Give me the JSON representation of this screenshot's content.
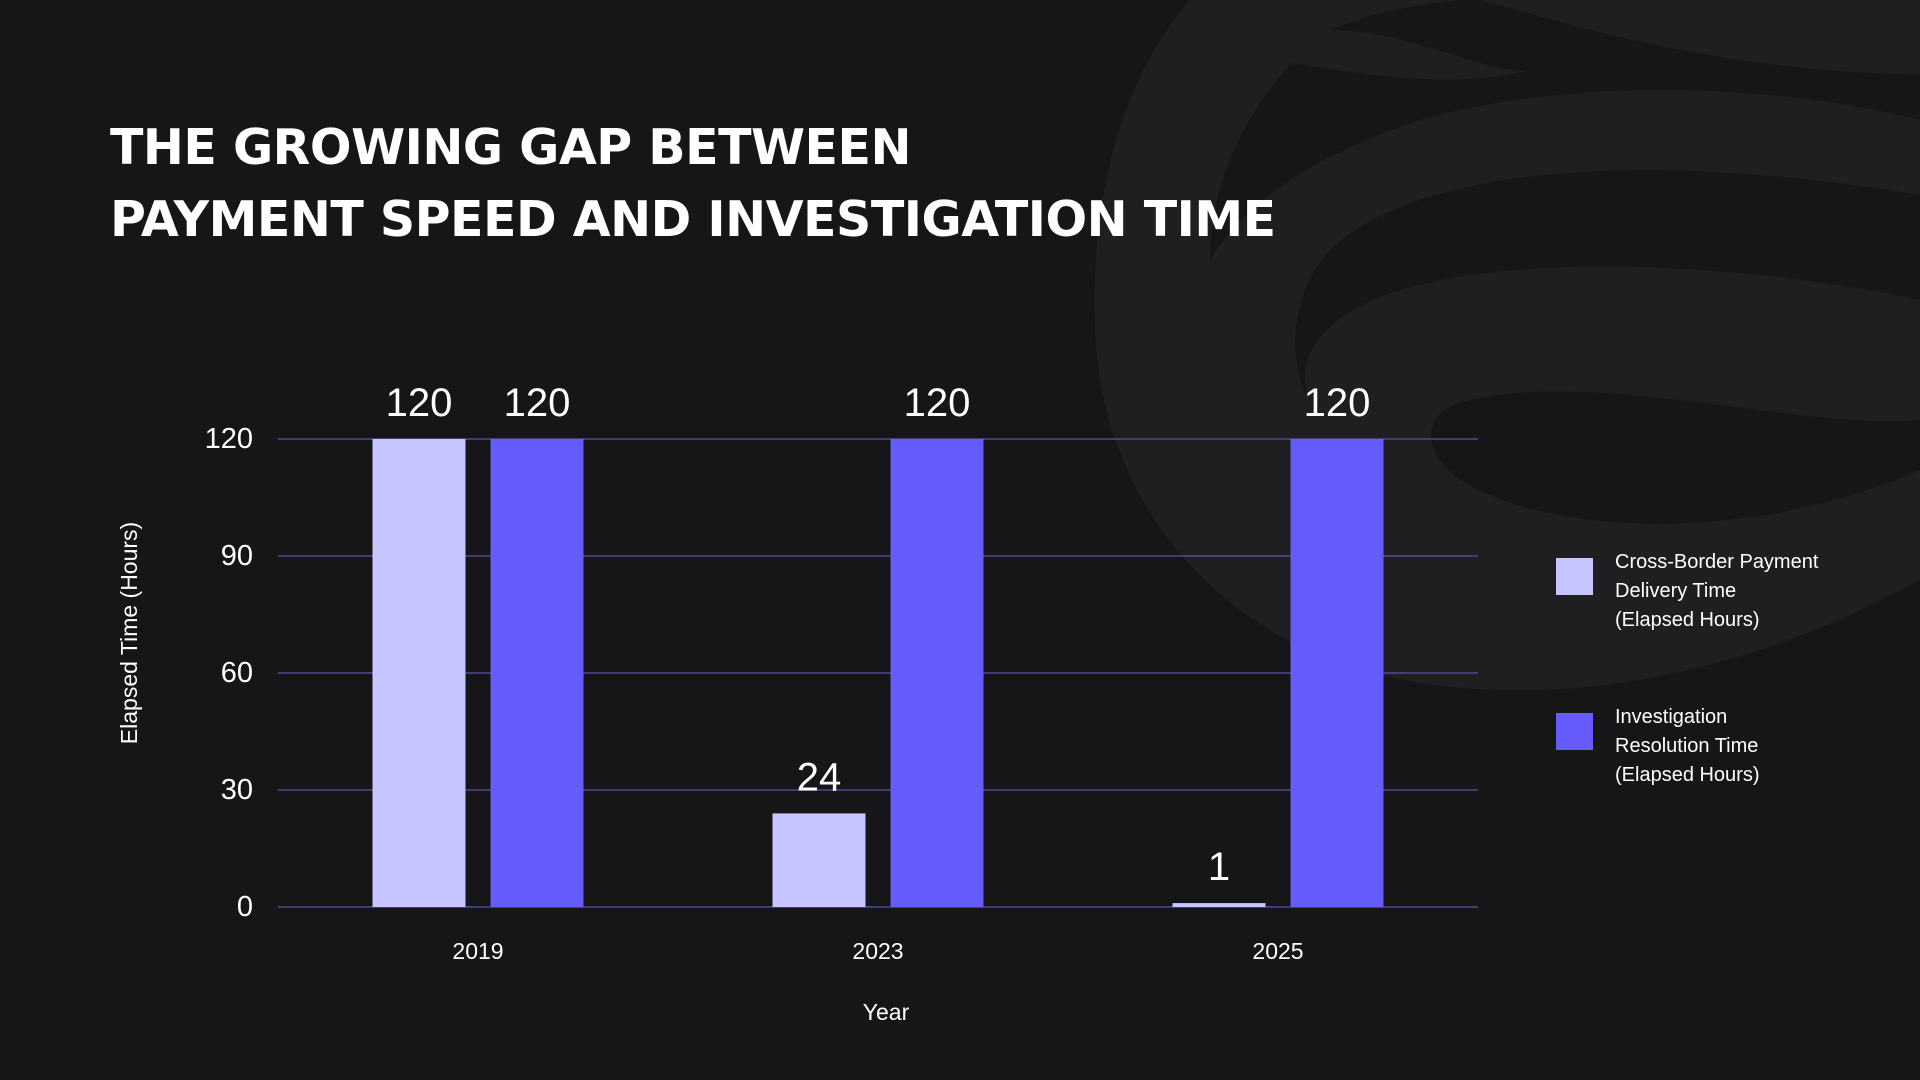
{
  "page": {
    "title_lines": [
      "THE GROWING GAP BETWEEN",
      "PAYMENT SPEED AND INVESTIGATION TIME"
    ],
    "background_color": "#161619",
    "decoration_color": "#1f1f22",
    "decoration_icon": "swirl-logo-watermark-icon"
  },
  "chart_data": {
    "type": "bar",
    "title": "THE GROWING GAP BETWEEN PAYMENT SPEED AND INVESTIGATION TIME",
    "xlabel": "Year",
    "ylabel": "Elapsed Time (Hours)",
    "categories": [
      "2019",
      "2023",
      "2025"
    ],
    "ylim": [
      0,
      120
    ],
    "yticks": [
      0,
      30,
      60,
      90,
      120
    ],
    "grid": true,
    "gridline_color": "#4f4a8f",
    "legend_position": "right",
    "series": [
      {
        "name": "Cross-Border Payment Delivery Time (Elapsed Hours)",
        "legend_lines": [
          "Cross-Border Payment",
          "Delivery Time",
          "(Elapsed Hours)"
        ],
        "values": [
          120,
          24,
          1
        ],
        "color": "#c7c5ff"
      },
      {
        "name": "Investigation Resolution Time (Elapsed Hours)",
        "legend_lines": [
          "Investigation",
          "Resolution Time",
          "(Elapsed Hours)"
        ],
        "values": [
          120,
          120,
          120
        ],
        "color": "#665cfb"
      }
    ]
  }
}
